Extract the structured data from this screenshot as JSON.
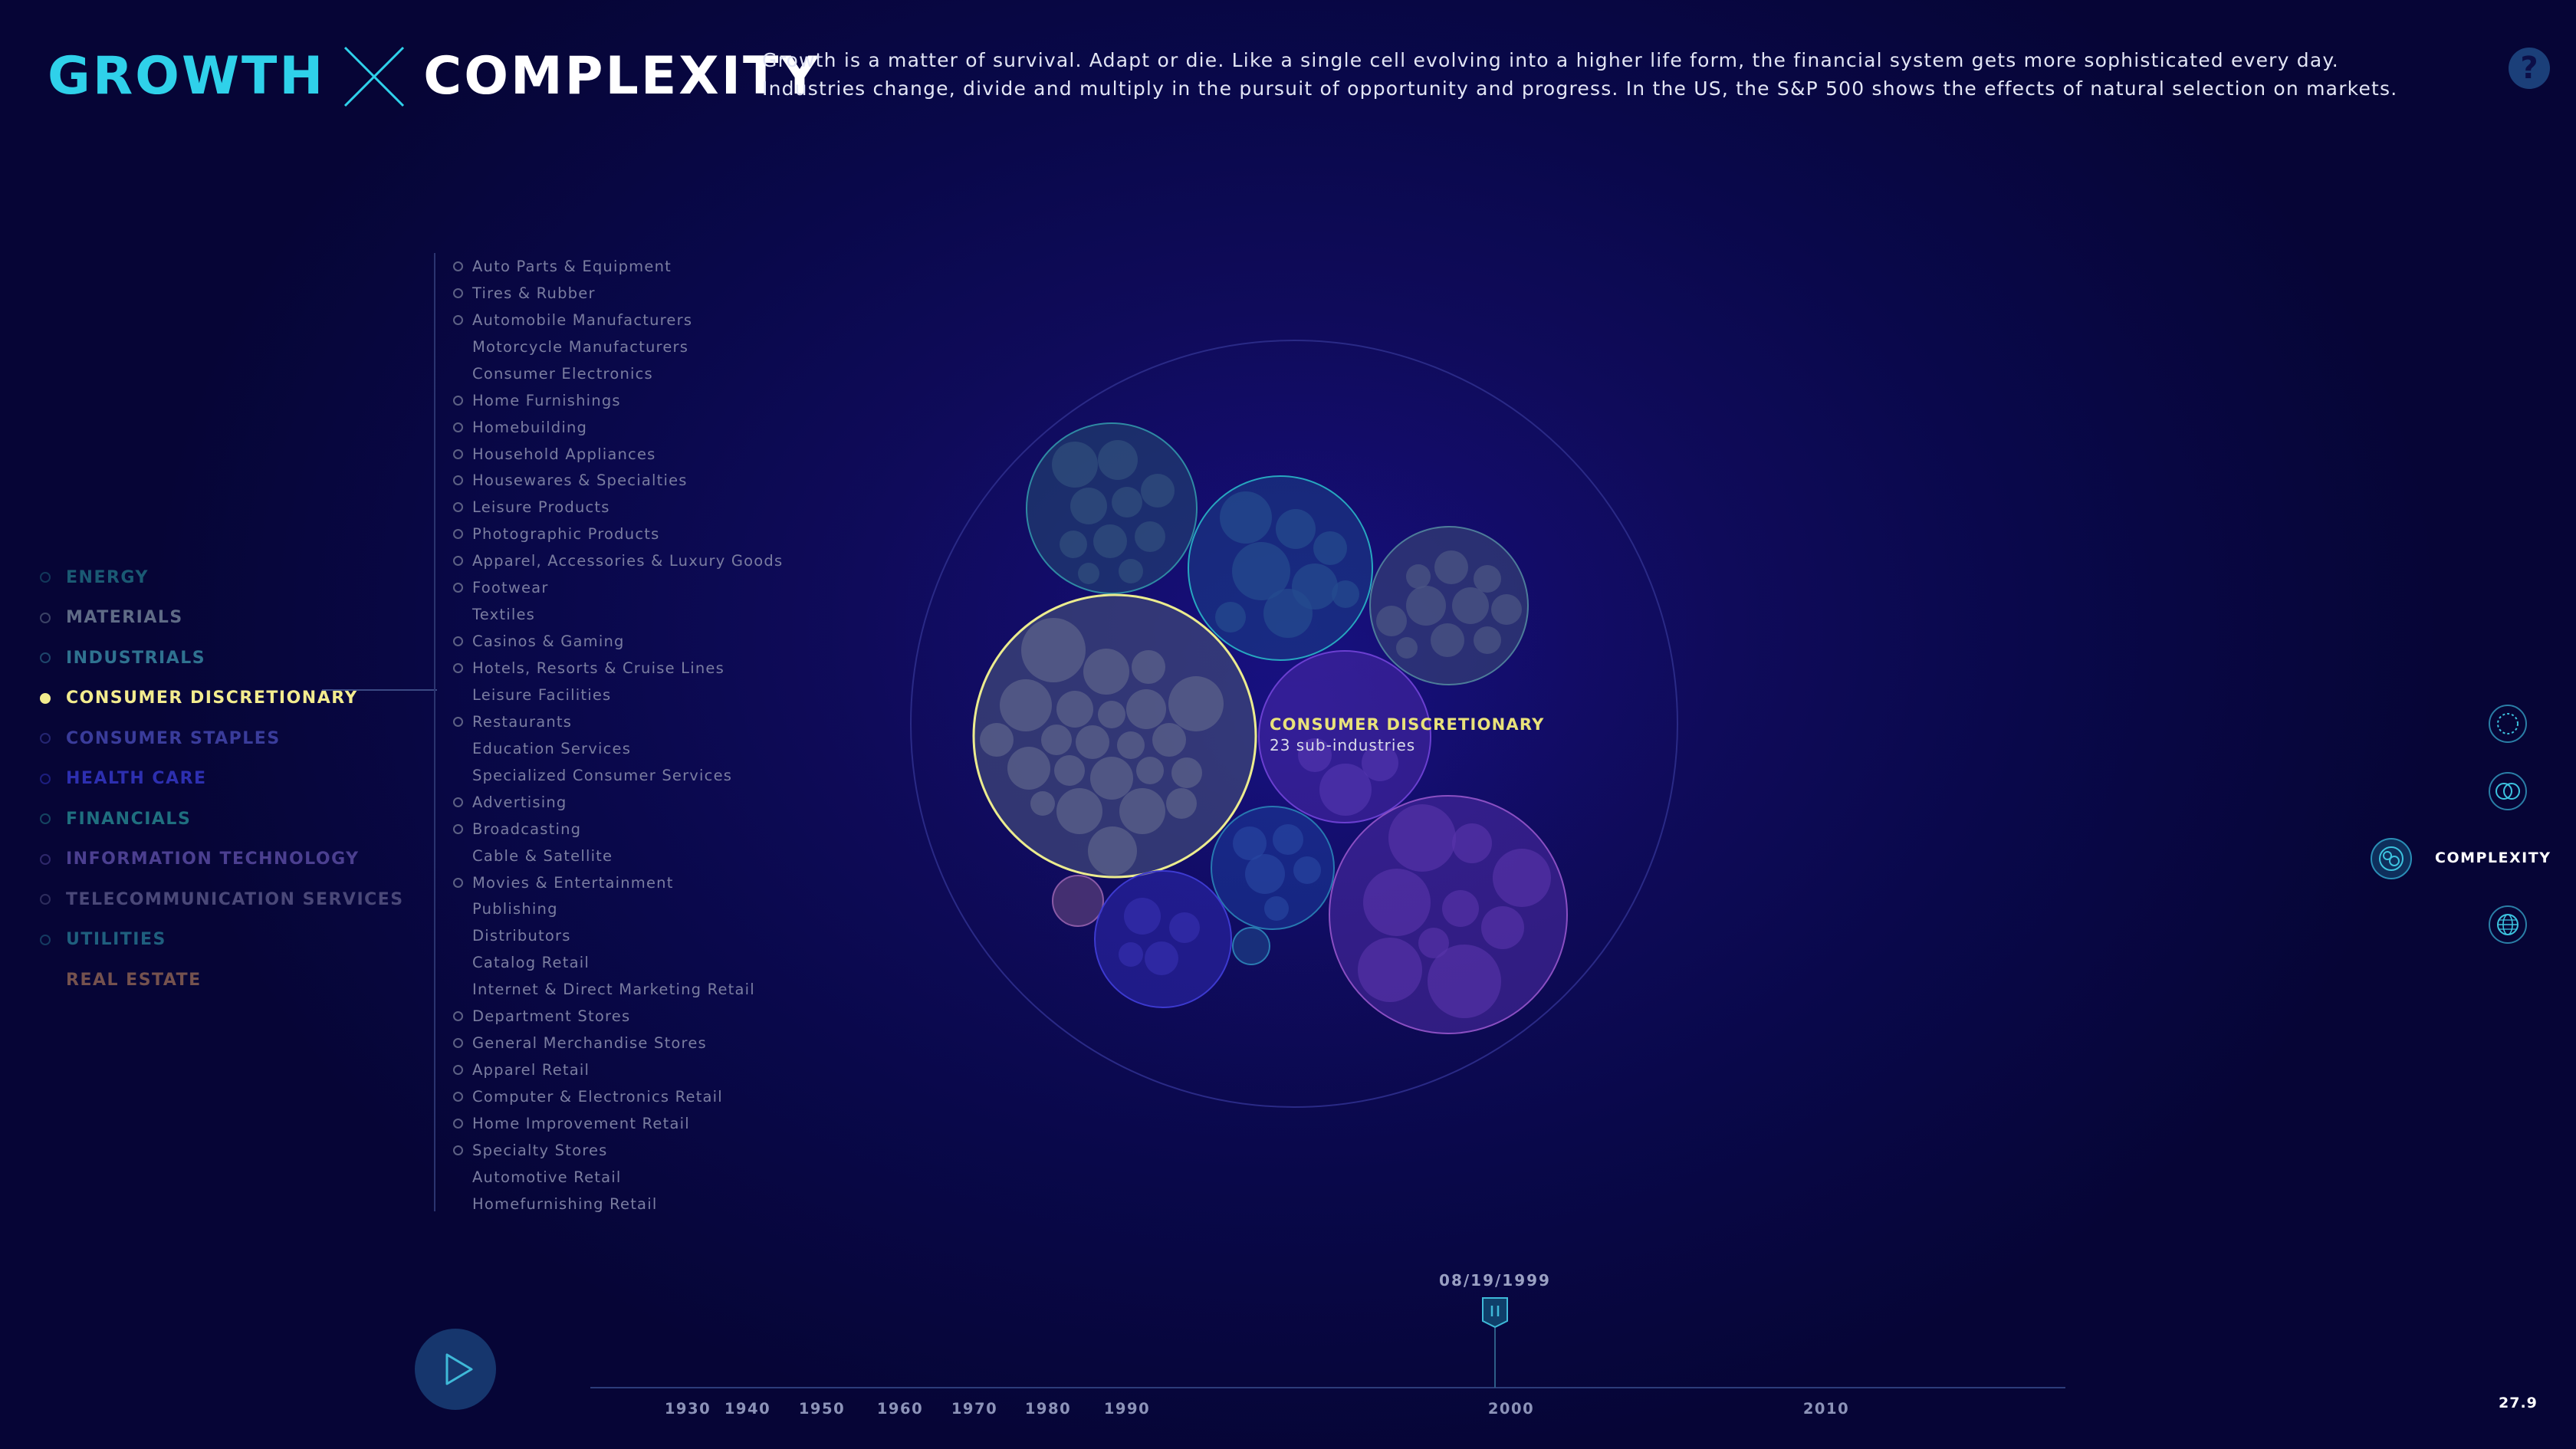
{
  "header": {
    "title_left": "GROWTH",
    "title_right": "COMPLEXITY",
    "intro_line1": "Growth is a matter of survival. Adapt or die. Like a single cell evolving into a higher life form, the financial system gets more sophisticated every day.",
    "intro_line2": "Industries change, divide and multiply in the pursuit of opportunity and progress. In the US, the S&P 500 shows the effects of natural selection on markets.",
    "help_label": "?"
  },
  "sectors": [
    {
      "label": "ENERGY",
      "color": "#1a5a73"
    },
    {
      "label": "MATERIALS",
      "color": "#5f6b86"
    },
    {
      "label": "INDUSTRIALS",
      "color": "#2f7290"
    },
    {
      "label": "CONSUMER DISCRETIONARY",
      "color": "#f3ec8e",
      "selected": true
    },
    {
      "label": "CONSUMER STAPLES",
      "color": "#3a3c9b"
    },
    {
      "label": "HEALTH CARE",
      "color": "#2d2fb0"
    },
    {
      "label": "FINANCIALS",
      "color": "#1f6f7f"
    },
    {
      "label": "INFORMATION TECHNOLOGY",
      "color": "#4b3f90"
    },
    {
      "label": "TELECOMMUNICATION SERVICES",
      "color": "#4a4878"
    },
    {
      "label": "UTILITIES",
      "color": "#1f5f7e"
    },
    {
      "label": "REAL ESTATE",
      "color": "#75524e",
      "no_dot": true
    }
  ],
  "sub_industries": [
    {
      "label": "Auto Parts & Equipment",
      "active": true
    },
    {
      "label": "Tires & Rubber",
      "active": true
    },
    {
      "label": "Automobile Manufacturers",
      "active": true
    },
    {
      "label": "Motorcycle Manufacturers",
      "active": false
    },
    {
      "label": "Consumer Electronics",
      "active": false
    },
    {
      "label": "Home Furnishings",
      "active": true
    },
    {
      "label": "Homebuilding",
      "active": true
    },
    {
      "label": "Household Appliances",
      "active": true
    },
    {
      "label": "Housewares & Specialties",
      "active": true
    },
    {
      "label": "Leisure Products",
      "active": true
    },
    {
      "label": "Photographic Products",
      "active": true
    },
    {
      "label": "Apparel, Accessories & Luxury Goods",
      "active": true
    },
    {
      "label": "Footwear",
      "active": true
    },
    {
      "label": "Textiles",
      "active": false
    },
    {
      "label": "Casinos & Gaming",
      "active": true
    },
    {
      "label": "Hotels, Resorts & Cruise Lines",
      "active": true
    },
    {
      "label": "Leisure Facilities",
      "active": false
    },
    {
      "label": "Restaurants",
      "active": true
    },
    {
      "label": "Education Services",
      "active": false
    },
    {
      "label": "Specialized Consumer Services",
      "active": false
    },
    {
      "label": "Advertising",
      "active": true
    },
    {
      "label": "Broadcasting",
      "active": true
    },
    {
      "label": "Cable & Satellite",
      "active": false
    },
    {
      "label": "Movies & Entertainment",
      "active": true
    },
    {
      "label": "Publishing",
      "active": false
    },
    {
      "label": "Distributors",
      "active": false
    },
    {
      "label": "Catalog Retail",
      "active": false
    },
    {
      "label": "Internet & Direct Marketing Retail",
      "active": false
    },
    {
      "label": "Department Stores",
      "active": true
    },
    {
      "label": "General Merchandise Stores",
      "active": true
    },
    {
      "label": "Apparel Retail",
      "active": true
    },
    {
      "label": "Computer & Electronics Retail",
      "active": true
    },
    {
      "label": "Home Improvement Retail",
      "active": true
    },
    {
      "label": "Specialty Stores",
      "active": true
    },
    {
      "label": "Automotive Retail",
      "active": false
    },
    {
      "label": "Homefurnishing Retail",
      "active": false
    }
  ],
  "bubble_tooltip": {
    "title": "CONSUMER DISCRETIONARY",
    "subtitle": "23 sub-industries"
  },
  "view_modes": {
    "active_label": "COMPLEXITY",
    "modes": [
      "ring-view-icon",
      "venn-view-icon",
      "complexity-view-icon",
      "globe-view-icon"
    ]
  },
  "timeline": {
    "current_date": "08/19/1999",
    "years": [
      "1930",
      "1940",
      "1950",
      "1960",
      "1970",
      "1980",
      "1990",
      "2000",
      "2010"
    ]
  },
  "zoom_level": "27.9"
}
